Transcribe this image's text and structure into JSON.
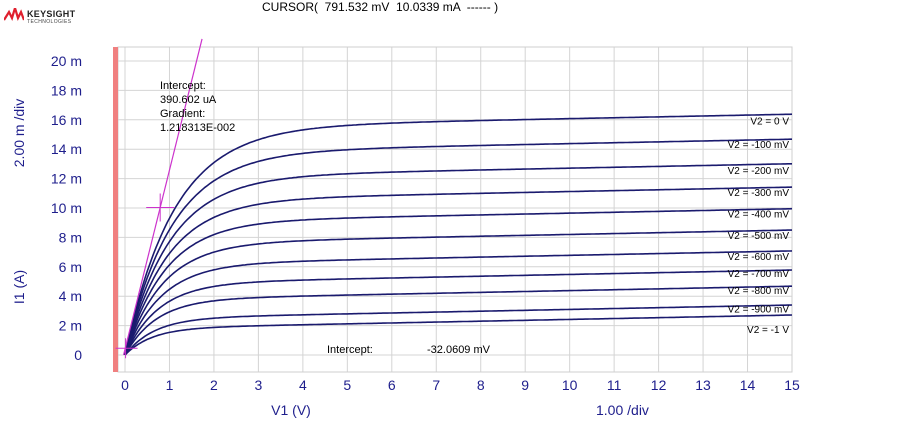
{
  "header": {
    "logo_text": "KEYSIGHT",
    "logo_subtext": "TECHNOLOGIES",
    "cursor_readout": "CURSOR(  791.532 mV  10.0339 mA  ------ )"
  },
  "colors": {
    "curve": "#1a1a6e",
    "tangent": "#cc33cc",
    "grid": "#d4d4d4",
    "marker_bar": "#f08080",
    "axis_text": "#1e1e8c",
    "logo_red": "#e0202e"
  },
  "chart_data": {
    "type": "line",
    "xlabel": "V1 (V)",
    "ylabel": "I1 (A)",
    "x_div_label": "1.00  /div",
    "y_div_label": "2.00 m /div",
    "xlim": [
      0,
      15
    ],
    "ylim": [
      0,
      0.02
    ],
    "x_ticks": [
      "0",
      "1",
      "2",
      "3",
      "4",
      "5",
      "6",
      "7",
      "8",
      "9",
      "10",
      "11",
      "12",
      "13",
      "14",
      "15"
    ],
    "y_ticks": [
      "0",
      "2 m",
      "4 m",
      "6 m",
      "8 m",
      "10 m",
      "12 m",
      "14 m",
      "16 m",
      "18 m",
      "20 m"
    ],
    "grid": true,
    "series": [
      {
        "name": "V2 = 0 V",
        "isat": 0.01548,
        "knee": 1.1
      },
      {
        "name": "V2 = -100 mV",
        "isat": 0.01378,
        "knee": 1.05
      },
      {
        "name": "V2 = -200 mV",
        "isat": 0.01211,
        "knee": 1.0
      },
      {
        "name": "V2 = -300 mV",
        "isat": 0.01052,
        "knee": 0.95
      },
      {
        "name": "V2 = -400 mV",
        "isat": 0.00905,
        "knee": 0.9
      },
      {
        "name": "V2 = -500 mV",
        "isat": 0.0076,
        "knee": 0.85
      },
      {
        "name": "V2 = -600 mV",
        "isat": 0.00618,
        "knee": 0.8
      },
      {
        "name": "V2 = -700 mV",
        "isat": 0.00488,
        "knee": 0.75
      },
      {
        "name": "V2 = -800 mV",
        "isat": 0.00378,
        "knee": 0.7
      },
      {
        "name": "V2 = -900 mV",
        "isat": 0.0025,
        "knee": 0.65
      },
      {
        "name": "V2 = -1 V",
        "isat": 0.00182,
        "knee": 0.6
      }
    ],
    "label_y_values": [
      0.01595,
      0.01435,
      0.01258,
      0.01108,
      0.00963,
      0.00815,
      0.00673,
      0.00558,
      0.00442,
      0.00315,
      0.00178
    ],
    "tangent": {
      "intercept": 0.000390602,
      "gradient": 0.01218313
    },
    "cursor": {
      "x": 0.791532,
      "y": 0.0100339
    },
    "annotations": {
      "upper": [
        "Intercept:",
        "390.602 uA",
        "Gradient:",
        "1.218313E-002"
      ],
      "lower_label": "Intercept:",
      "lower_value": "-32.0609 mV"
    }
  }
}
